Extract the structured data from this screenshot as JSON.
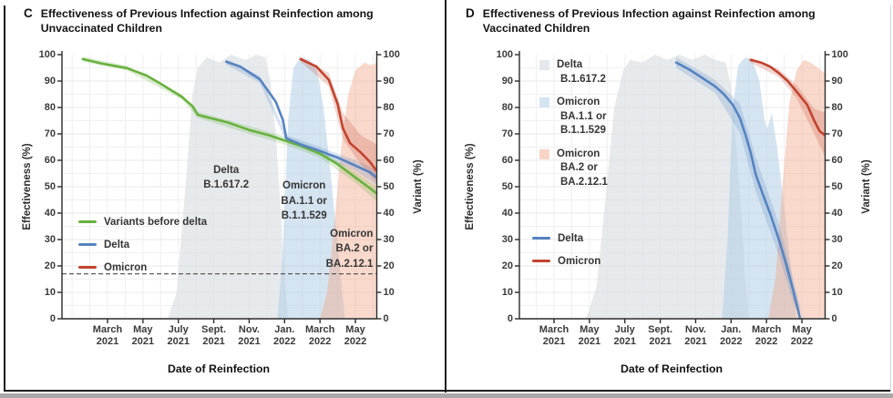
{
  "figure_title": "Effectiveness of Previous Infection against Reinfection",
  "chart_data": [
    {
      "type": "line",
      "panel_letter": "C",
      "title_lines": [
        "Effectiveness of Previous Infection against Reinfection among",
        "Unvaccinated Children"
      ],
      "title": "Effectiveness of Previous Infection against Reinfection among Unvaccinated Children",
      "xlabel": "Date of Reinfection",
      "ylabel_left": "Effectiveness (%)",
      "ylabel_right": "Variant (%)",
      "ylim": [
        0,
        100
      ],
      "y_ticks": [
        0,
        10,
        20,
        30,
        40,
        50,
        60,
        70,
        80,
        90,
        100
      ],
      "x_unit": "months_since_jan_2021",
      "x_ticks": [
        {
          "m": 2,
          "month": "March",
          "year": "2021"
        },
        {
          "m": 4,
          "month": "May",
          "year": "2021"
        },
        {
          "m": 6,
          "month": "July",
          "year": "2021"
        },
        {
          "m": 8,
          "month": "Sept.",
          "year": "2021"
        },
        {
          "m": 10,
          "month": "Nov.",
          "year": "2021"
        },
        {
          "m": 12,
          "month": "Jan.",
          "year": "2022"
        },
        {
          "m": 14,
          "month": "March",
          "year": "2022"
        },
        {
          "m": 16,
          "month": "May",
          "year": "2022"
        }
      ],
      "reference_line": {
        "y": 17,
        "style": "dashed"
      },
      "series": [
        {
          "name": "Variants before delta",
          "color": "#68b13e",
          "points": [
            [
              0.6,
              98.3
            ],
            [
              1.7,
              96.6
            ],
            [
              3.1,
              94.9
            ],
            [
              4.2,
              92.1
            ],
            [
              5.0,
              89.0
            ],
            [
              6.2,
              84.0
            ],
            [
              6.8,
              80.5
            ],
            [
              7.1,
              77.2
            ],
            [
              7.8,
              76.0
            ],
            [
              8.8,
              74.3
            ],
            [
              10.0,
              71.5
            ],
            [
              11.1,
              69.5
            ],
            [
              12.0,
              67.5
            ],
            [
              12.9,
              65.5
            ],
            [
              14.0,
              62.5
            ],
            [
              15.0,
              58.5
            ],
            [
              16.0,
              53.5
            ],
            [
              16.8,
              49.5
            ],
            [
              17.2,
              47.5
            ]
          ],
          "band": [
            [
              0.6,
              97.3,
              99.2
            ],
            [
              3.1,
              94.0,
              95.8
            ],
            [
              6.2,
              83.0,
              85.0
            ],
            [
              7.1,
              76.0,
              78.4
            ],
            [
              10.0,
              70.0,
              73.0
            ],
            [
              12.0,
              66.0,
              69.0
            ],
            [
              14.0,
              61.0,
              64.0
            ],
            [
              16.0,
              51.5,
              55.5
            ],
            [
              17.2,
              44.5,
              50.0
            ]
          ]
        },
        {
          "name": "Delta",
          "color": "#5583c1",
          "points": [
            [
              8.7,
              97.3
            ],
            [
              9.5,
              95.5
            ],
            [
              10.6,
              90.7
            ],
            [
              11.5,
              82.2
            ],
            [
              11.9,
              75.3
            ],
            [
              12.1,
              68.3
            ],
            [
              12.9,
              66.0
            ],
            [
              14.0,
              63.5
            ],
            [
              15.0,
              61.0
            ],
            [
              16.0,
              58.0
            ],
            [
              16.8,
              55.5
            ],
            [
              17.2,
              53.5
            ]
          ],
          "band": [
            [
              8.7,
              96.2,
              98.4
            ],
            [
              10.6,
              89.3,
              92.0
            ],
            [
              12.1,
              67.0,
              69.6
            ],
            [
              14.0,
              62.0,
              65.0
            ],
            [
              16.0,
              56.0,
              60.0
            ],
            [
              17.2,
              50.5,
              56.5
            ]
          ]
        },
        {
          "name": "Omicron",
          "color": "#c2432e",
          "points": [
            [
              12.9,
              98.3
            ],
            [
              13.8,
              95.5
            ],
            [
              14.5,
              90.4
            ],
            [
              15.0,
              81.2
            ],
            [
              15.3,
              72.0
            ],
            [
              15.7,
              66.5
            ],
            [
              16.3,
              63.0
            ],
            [
              16.8,
              59.5
            ],
            [
              17.2,
              56.0
            ]
          ],
          "band": [
            [
              12.9,
              97.4,
              99.2
            ],
            [
              14.5,
              88.0,
              93.0
            ],
            [
              15.3,
              68.0,
              78.0
            ],
            [
              16.3,
              58.5,
              69.5
            ],
            [
              17.2,
              51.5,
              66.0
            ]
          ]
        }
      ],
      "variant_regions": [
        {
          "name": "Delta B.1.617.2",
          "fill": "#d9dee4",
          "opacity": 0.65,
          "points": [
            [
              5.4,
              0
            ],
            [
              5.9,
              10
            ],
            [
              6.4,
              50
            ],
            [
              6.8,
              85
            ],
            [
              7.1,
              95
            ],
            [
              7.6,
              99
            ],
            [
              8.3,
              97
            ],
            [
              9.0,
              100
            ],
            [
              9.8,
              98
            ],
            [
              10.4,
              100
            ],
            [
              10.9,
              99
            ],
            [
              11.2,
              90
            ],
            [
              11.5,
              70
            ],
            [
              11.8,
              40
            ],
            [
              12.0,
              15
            ],
            [
              12.2,
              0
            ]
          ]
        },
        {
          "name": "Omicron BA.1.1 or B.1.1.529",
          "fill": "#abc9e3",
          "opacity": 0.5,
          "points": [
            [
              11.6,
              0
            ],
            [
              11.9,
              25
            ],
            [
              12.2,
              75
            ],
            [
              12.5,
              95
            ],
            [
              12.9,
              99
            ],
            [
              13.4,
              98
            ],
            [
              13.8,
              95
            ],
            [
              14.2,
              80
            ],
            [
              14.6,
              55
            ],
            [
              15.0,
              28
            ],
            [
              15.4,
              0
            ]
          ]
        },
        {
          "name": "Omicron BA.2 or BA.2.12.1",
          "fill": "#f0ab8e",
          "opacity": 0.45,
          "points": [
            [
              14.0,
              0
            ],
            [
              14.4,
              10
            ],
            [
              14.8,
              35
            ],
            [
              15.2,
              65
            ],
            [
              15.6,
              85
            ],
            [
              16.0,
              94
            ],
            [
              16.5,
              97
            ],
            [
              16.9,
              96
            ],
            [
              17.2,
              97
            ]
          ]
        }
      ],
      "annotations": [
        {
          "lines": [
            "Delta",
            "B.1.617.2"
          ],
          "m": 8.7,
          "v": 59,
          "align": "center"
        },
        {
          "lines": [
            "Omicron",
            "BA.1.1 or",
            "B.1.1.529"
          ],
          "m": 13.1,
          "v": 53,
          "align": "center"
        },
        {
          "lines": [
            "Omicron",
            "BA.2 or",
            "BA.2.12.1"
          ],
          "m": 17.0,
          "v": 35,
          "align": "right"
        }
      ],
      "line_legend": [
        {
          "label": "Variants before delta",
          "color": "#68b13e"
        },
        {
          "label": "Delta",
          "color": "#5583c1"
        },
        {
          "label": "Omicron",
          "color": "#c2432e"
        }
      ]
    },
    {
      "type": "line",
      "panel_letter": "D",
      "title_lines": [
        "Effectiveness of Previous Infection against Reinfection among",
        "Vaccinated Children"
      ],
      "title": "Effectiveness of Previous Infection against Reinfection among Vaccinated Children",
      "xlabel": "Date of Reinfection",
      "ylabel_left": "Effectiveness (%)",
      "ylabel_right": "Variant (%)",
      "ylim": [
        0,
        100
      ],
      "y_ticks": [
        0,
        10,
        20,
        30,
        40,
        50,
        60,
        70,
        80,
        90,
        100
      ],
      "x_unit": "months_since_jan_2021",
      "x_ticks": [
        {
          "m": 2,
          "month": "March",
          "year": "2021"
        },
        {
          "m": 4,
          "month": "May",
          "year": "2021"
        },
        {
          "m": 6,
          "month": "July",
          "year": "2021"
        },
        {
          "m": 8,
          "month": "Sept.",
          "year": "2021"
        },
        {
          "m": 10,
          "month": "Nov.",
          "year": "2021"
        },
        {
          "m": 12,
          "month": "Jan.",
          "year": "2022"
        },
        {
          "m": 14,
          "month": "March",
          "year": "2022"
        },
        {
          "m": 16,
          "month": "May",
          "year": "2022"
        }
      ],
      "series": [
        {
          "name": "Delta",
          "color": "#5583c1",
          "points": [
            [
              8.9,
              97.0
            ],
            [
              9.6,
              94.5
            ],
            [
              10.3,
              91.5
            ],
            [
              11.1,
              88.0
            ],
            [
              11.6,
              85.0
            ],
            [
              12.1,
              81.0
            ],
            [
              12.5,
              76.0
            ],
            [
              12.8,
              70.0
            ],
            [
              13.1,
              63.0
            ],
            [
              13.4,
              54.5
            ],
            [
              13.8,
              47.0
            ],
            [
              14.2,
              40.0
            ],
            [
              14.7,
              30.0
            ],
            [
              15.1,
              21.0
            ],
            [
              15.5,
              11.0
            ],
            [
              15.9,
              0.0
            ]
          ],
          "band": [
            [
              8.9,
              95.0,
              99.0
            ],
            [
              11.1,
              85.5,
              90.5
            ],
            [
              12.5,
              70.5,
              81.5
            ],
            [
              13.4,
              48.0,
              61.0
            ],
            [
              14.7,
              24.0,
              36.0
            ],
            [
              15.5,
              6.5,
              15.5
            ],
            [
              15.9,
              0.0,
              5.0
            ]
          ]
        },
        {
          "name": "Omicron",
          "color": "#c2432e",
          "points": [
            [
              13.1,
              98.0
            ],
            [
              13.7,
              97.0
            ],
            [
              14.2,
              95.5
            ],
            [
              14.7,
              93.0
            ],
            [
              15.2,
              90.0
            ],
            [
              15.7,
              86.0
            ],
            [
              16.3,
              81.0
            ],
            [
              16.7,
              75.0
            ],
            [
              17.0,
              71.0
            ],
            [
              17.3,
              69.5
            ]
          ],
          "band": [
            [
              13.1,
              97.0,
              99.0
            ],
            [
              14.7,
              91.5,
              94.5
            ],
            [
              15.7,
              83.5,
              88.5
            ],
            [
              16.7,
              70.0,
              79.5
            ],
            [
              17.3,
              61.5,
              78.0
            ]
          ]
        }
      ],
      "variant_regions": [
        {
          "name": "Delta B.1.617.2",
          "fill": "#d9dee4",
          "opacity": 0.65,
          "points": [
            [
              3.8,
              0
            ],
            [
              4.4,
              12
            ],
            [
              4.9,
              45
            ],
            [
              5.4,
              80
            ],
            [
              5.9,
              94
            ],
            [
              6.3,
              98
            ],
            [
              7.0,
              97
            ],
            [
              7.7,
              100
            ],
            [
              8.4,
              98
            ],
            [
              9.1,
              100
            ],
            [
              9.8,
              98
            ],
            [
              10.5,
              100
            ],
            [
              11.1,
              98
            ],
            [
              11.7,
              97
            ],
            [
              12.0,
              88
            ],
            [
              12.3,
              65
            ],
            [
              12.6,
              38
            ],
            [
              12.8,
              15
            ],
            [
              13.0,
              0
            ]
          ]
        },
        {
          "name": "Omicron BA.1.1 or B.1.1.529",
          "fill": "#abc9e3",
          "opacity": 0.5,
          "points": [
            [
              11.5,
              0
            ],
            [
              11.8,
              30
            ],
            [
              12.1,
              80
            ],
            [
              12.4,
              96
            ],
            [
              12.8,
              99
            ],
            [
              13.2,
              98
            ],
            [
              13.6,
              90
            ],
            [
              13.9,
              75
            ],
            [
              14.05,
              72
            ],
            [
              14.3,
              78
            ],
            [
              14.6,
              65
            ],
            [
              15.0,
              42
            ],
            [
              15.4,
              18
            ],
            [
              15.7,
              0
            ]
          ]
        },
        {
          "name": "Omicron BA.2 or BA.2.12.1",
          "fill": "#f0ab8e",
          "opacity": 0.45,
          "points": [
            [
              14.1,
              0
            ],
            [
              14.5,
              15
            ],
            [
              14.9,
              50
            ],
            [
              15.3,
              82
            ],
            [
              15.7,
              94
            ],
            [
              16.1,
              98
            ],
            [
              16.5,
              97
            ],
            [
              16.9,
              95
            ],
            [
              17.3,
              93
            ]
          ]
        }
      ],
      "annotations": [],
      "region_legend": [
        {
          "lines": [
            "Delta",
            "B.1.617.2"
          ],
          "color": "#e4e8ec"
        },
        {
          "lines": [
            "Omicron",
            "BA.1.1 or",
            "B.1.1.529"
          ],
          "color": "#d5e4f1"
        },
        {
          "lines": [
            "Omicron",
            "BA.2 or",
            "BA.2.12.1"
          ],
          "color": "#f8d5c6"
        }
      ],
      "line_legend": [
        {
          "label": "Delta",
          "color": "#5583c1"
        },
        {
          "label": "Omicron",
          "color": "#c2432e"
        }
      ]
    }
  ]
}
